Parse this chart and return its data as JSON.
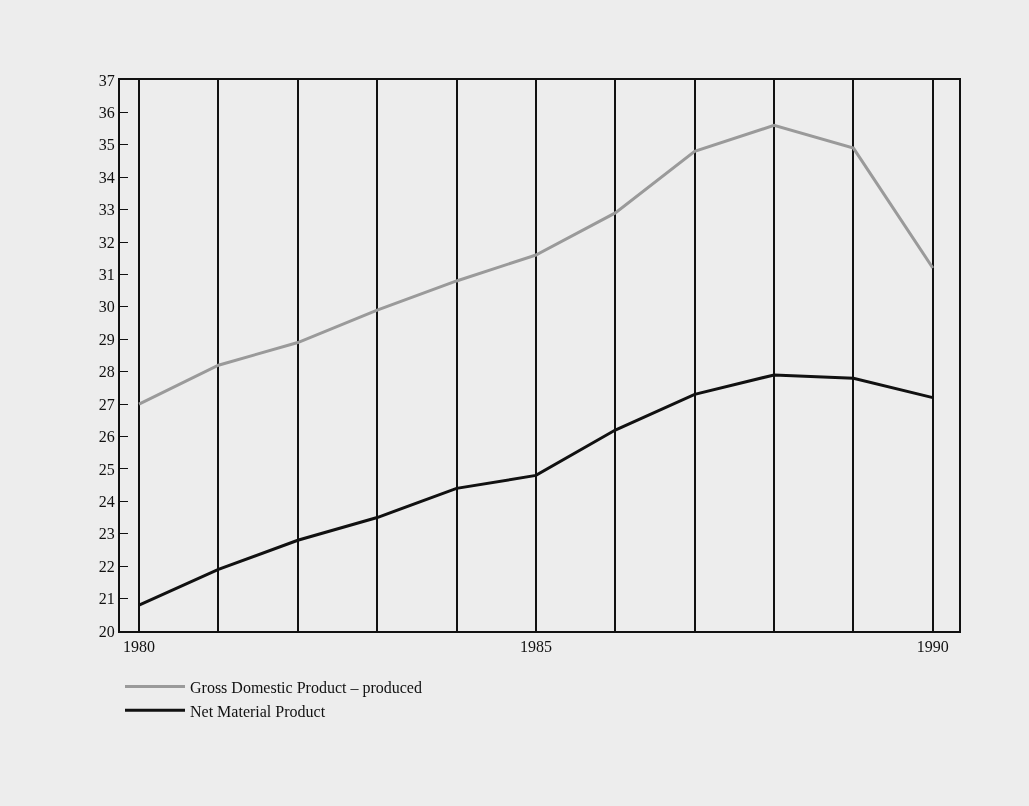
{
  "chart_data": {
    "type": "line",
    "x": [
      1980,
      1981,
      1982,
      1983,
      1984,
      1985,
      1986,
      1987,
      1988,
      1989,
      1990
    ],
    "series": [
      {
        "name": "Gross Domestic Product – produced",
        "color": "#9a9a9a",
        "values": [
          27.0,
          28.2,
          28.9,
          29.9,
          30.8,
          31.6,
          32.9,
          34.8,
          35.6,
          34.9,
          31.2
        ]
      },
      {
        "name": "Net Material Product",
        "color": "#111111",
        "values": [
          20.8,
          21.9,
          22.8,
          23.5,
          24.4,
          24.8,
          26.2,
          27.3,
          27.9,
          27.8,
          27.2
        ]
      }
    ],
    "xlim": [
      1979.76,
      1990.33
    ],
    "xticks": [
      1980,
      {
        "value": 1981,
        "label": null
      },
      {
        "value": 1982,
        "label": null
      },
      {
        "value": 1983,
        "label": null
      },
      {
        "value": 1984,
        "label": null
      },
      1985,
      {
        "value": 1986,
        "label": null
      },
      {
        "value": 1987,
        "label": null
      },
      {
        "value": 1988,
        "label": null
      },
      {
        "value": 1989,
        "label": null
      },
      1990
    ],
    "ylim": [
      20,
      37
    ],
    "yticks": [
      20,
      21,
      22,
      23,
      24,
      25,
      26,
      27,
      28,
      29,
      30,
      31,
      32,
      33,
      34,
      35,
      36,
      37
    ],
    "grid": "x",
    "legend": "bottom left",
    "marker": "none",
    "line_style": "solid"
  }
}
